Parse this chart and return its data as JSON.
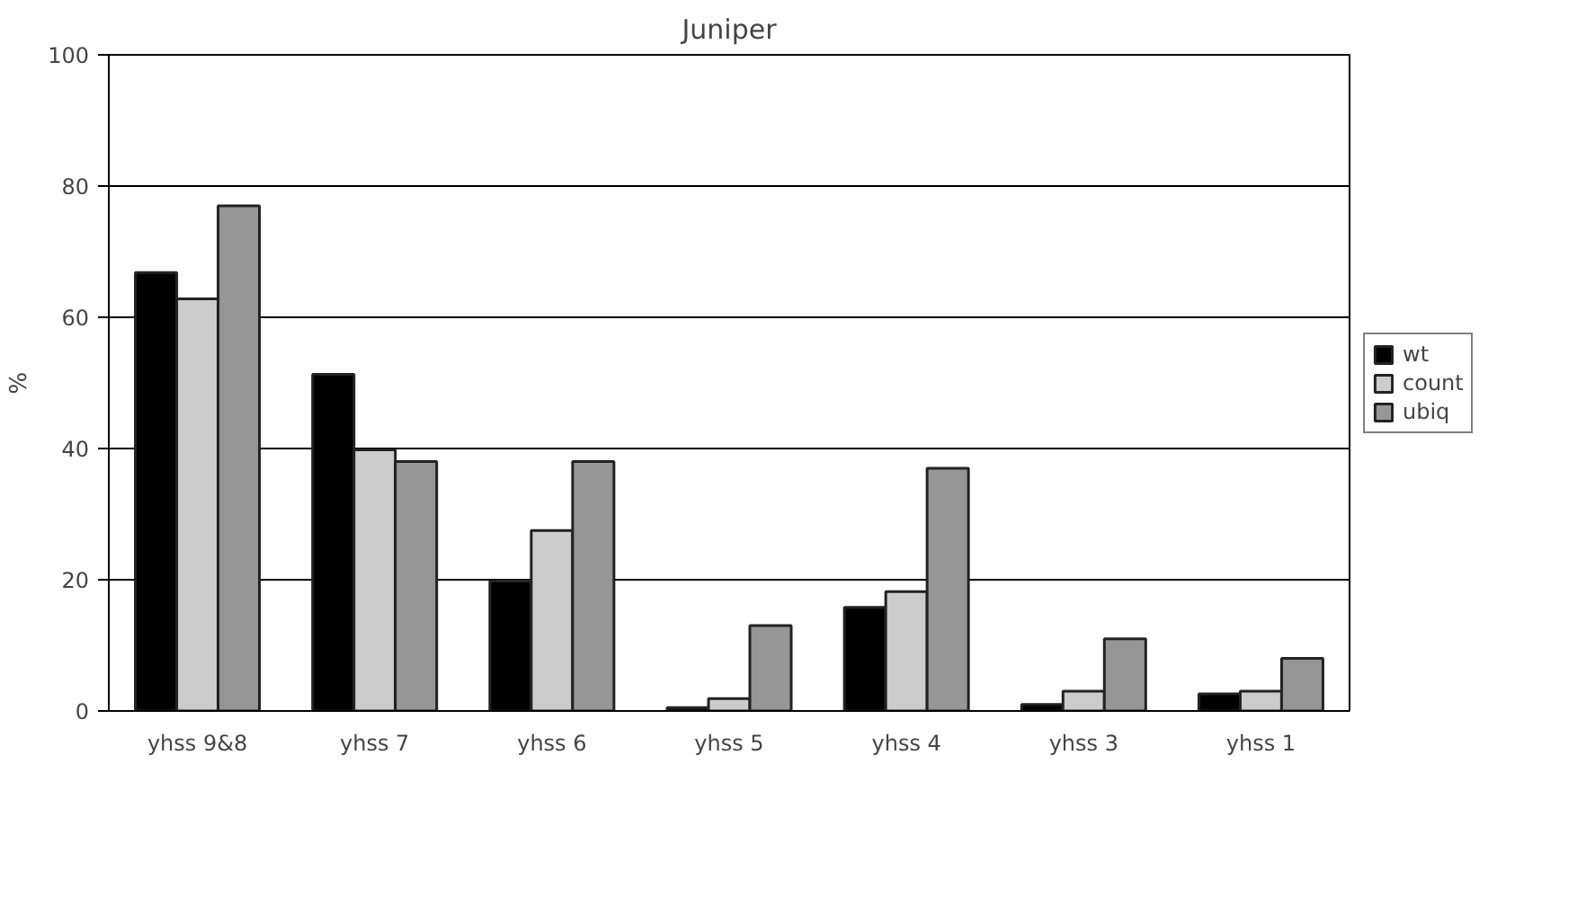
{
  "chart_data": {
    "type": "bar",
    "title": "Juniper",
    "ylabel": "%",
    "categories": [
      "yhss 9&8",
      "yhss 7",
      "yhss 6",
      "yhss 5",
      "yhss 4",
      "yhss 3",
      "yhss 1"
    ],
    "series": [
      {
        "name": "wt",
        "color": "#000000",
        "values": [
          66.8,
          51.3,
          19.8,
          0.5,
          15.8,
          1,
          2.6
        ]
      },
      {
        "name": "count",
        "color": "#cccccc",
        "values": [
          62.8,
          39.8,
          27.5,
          1.9,
          18.2,
          3,
          3
        ]
      },
      {
        "name": "ubiq",
        "color": "#969696",
        "values": [
          77,
          38,
          38,
          13,
          37,
          11,
          8
        ]
      }
    ],
    "ylim": [
      0,
      100
    ],
    "yticks": [
      0,
      20,
      40,
      60,
      80,
      100
    ],
    "grid": "y",
    "legend": "right"
  }
}
